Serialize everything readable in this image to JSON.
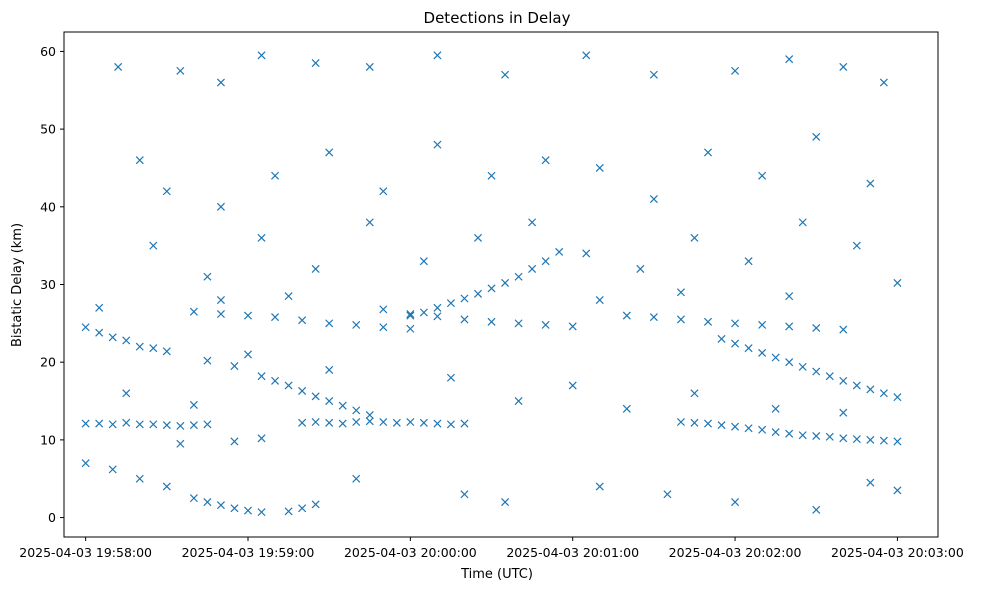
{
  "chart_data": {
    "type": "scatter",
    "title": "Detections in Delay",
    "xlabel": "Time (UTC)",
    "ylabel": "Bistatic Delay (km)",
    "x_type": "time",
    "xlim": [
      "2025-04-03 19:57:52",
      "2025-04-03 20:03:15"
    ],
    "ylim": [
      -2.5,
      62.5
    ],
    "x_ticks": [
      "2025-04-03 19:58:00",
      "2025-04-03 19:59:00",
      "2025-04-03 20:00:00",
      "2025-04-03 20:01:00",
      "2025-04-03 20:02:00",
      "2025-04-03 20:03:00"
    ],
    "y_ticks": [
      0,
      10,
      20,
      30,
      40,
      50,
      60
    ],
    "grid": false,
    "marker": "x",
    "color": "#1f77b4",
    "series": [
      {
        "points": [
          [
            "2025-04-03 19:58:00",
            12.1
          ],
          [
            "2025-04-03 19:58:05",
            12.1
          ],
          [
            "2025-04-03 19:58:10",
            12.0
          ],
          [
            "2025-04-03 19:58:15",
            12.2
          ],
          [
            "2025-04-03 19:58:20",
            12.0
          ],
          [
            "2025-04-03 19:58:25",
            12.0
          ],
          [
            "2025-04-03 19:58:30",
            11.9
          ],
          [
            "2025-04-03 19:58:35",
            11.8
          ],
          [
            "2025-04-03 19:58:40",
            11.9
          ],
          [
            "2025-04-03 19:58:45",
            12.0
          ],
          [
            "2025-04-03 19:59:20",
            12.2
          ],
          [
            "2025-04-03 19:59:25",
            12.3
          ],
          [
            "2025-04-03 19:59:30",
            12.2
          ],
          [
            "2025-04-03 19:59:35",
            12.1
          ],
          [
            "2025-04-03 19:59:40",
            12.3
          ],
          [
            "2025-04-03 19:59:45",
            12.4
          ],
          [
            "2025-04-03 19:59:50",
            12.3
          ],
          [
            "2025-04-03 19:59:55",
            12.2
          ],
          [
            "2025-04-03 20:00:00",
            12.3
          ],
          [
            "2025-04-03 20:00:05",
            12.2
          ],
          [
            "2025-04-03 20:00:10",
            12.1
          ],
          [
            "2025-04-03 20:00:15",
            12.0
          ],
          [
            "2025-04-03 20:00:20",
            12.1
          ],
          [
            "2025-04-03 20:01:40",
            12.3
          ],
          [
            "2025-04-03 20:01:45",
            12.2
          ],
          [
            "2025-04-03 20:01:50",
            12.1
          ],
          [
            "2025-04-03 20:01:55",
            11.9
          ],
          [
            "2025-04-03 20:02:00",
            11.7
          ],
          [
            "2025-04-03 20:02:05",
            11.5
          ],
          [
            "2025-04-03 20:02:10",
            11.3
          ],
          [
            "2025-04-03 20:02:15",
            11.0
          ],
          [
            "2025-04-03 20:02:20",
            10.8
          ],
          [
            "2025-04-03 20:02:25",
            10.6
          ],
          [
            "2025-04-03 20:02:30",
            10.5
          ],
          [
            "2025-04-03 20:02:35",
            10.4
          ],
          [
            "2025-04-03 20:02:40",
            10.2
          ],
          [
            "2025-04-03 20:02:45",
            10.1
          ],
          [
            "2025-04-03 20:02:50",
            10.0
          ],
          [
            "2025-04-03 20:02:55",
            9.9
          ],
          [
            "2025-04-03 20:03:00",
            9.8
          ],
          [
            "2025-04-03 19:58:00",
            24.5
          ],
          [
            "2025-04-03 19:58:05",
            23.8
          ],
          [
            "2025-04-03 19:58:10",
            23.2
          ],
          [
            "2025-04-03 19:58:15",
            22.8
          ],
          [
            "2025-04-03 19:58:20",
            22.0
          ],
          [
            "2025-04-03 19:58:25",
            21.8
          ],
          [
            "2025-04-03 19:58:30",
            21.4
          ],
          [
            "2025-04-03 19:58:45",
            20.2
          ],
          [
            "2025-04-03 19:58:55",
            19.5
          ],
          [
            "2025-04-03 19:59:05",
            18.2
          ],
          [
            "2025-04-03 19:59:10",
            17.6
          ],
          [
            "2025-04-03 19:59:15",
            17.0
          ],
          [
            "2025-04-03 19:59:20",
            16.3
          ],
          [
            "2025-04-03 19:59:25",
            15.6
          ],
          [
            "2025-04-03 19:59:30",
            15.0
          ],
          [
            "2025-04-03 19:59:35",
            14.4
          ],
          [
            "2025-04-03 19:59:40",
            13.8
          ],
          [
            "2025-04-03 19:59:45",
            13.2
          ],
          [
            "2025-04-03 19:58:40",
            26.5
          ],
          [
            "2025-04-03 19:58:50",
            26.2
          ],
          [
            "2025-04-03 19:59:00",
            26.0
          ],
          [
            "2025-04-03 19:59:10",
            25.8
          ],
          [
            "2025-04-03 19:59:20",
            25.4
          ],
          [
            "2025-04-03 19:59:30",
            25.0
          ],
          [
            "2025-04-03 19:59:40",
            24.8
          ],
          [
            "2025-04-03 19:59:50",
            24.5
          ],
          [
            "2025-04-03 20:00:00",
            24.3
          ],
          [
            "2025-04-03 19:59:50",
            26.8
          ],
          [
            "2025-04-03 20:00:00",
            26.2
          ],
          [
            "2025-04-03 20:00:10",
            25.9
          ],
          [
            "2025-04-03 20:00:20",
            25.5
          ],
          [
            "2025-04-03 20:00:30",
            25.2
          ],
          [
            "2025-04-03 20:00:40",
            25.0
          ],
          [
            "2025-04-03 20:00:50",
            24.8
          ],
          [
            "2025-04-03 20:01:00",
            24.6
          ],
          [
            "2025-04-03 20:00:00",
            26.0
          ],
          [
            "2025-04-03 20:00:05",
            26.4
          ],
          [
            "2025-04-03 20:00:10",
            27.0
          ],
          [
            "2025-04-03 20:00:15",
            27.6
          ],
          [
            "2025-04-03 20:00:20",
            28.2
          ],
          [
            "2025-04-03 20:00:25",
            28.8
          ],
          [
            "2025-04-03 20:00:30",
            29.5
          ],
          [
            "2025-04-03 20:00:35",
            30.2
          ],
          [
            "2025-04-03 20:00:40",
            31.0
          ],
          [
            "2025-04-03 20:00:45",
            32.0
          ],
          [
            "2025-04-03 20:00:50",
            33.0
          ],
          [
            "2025-04-03 20:00:55",
            34.2
          ],
          [
            "2025-04-03 20:01:20",
            26.0
          ],
          [
            "2025-04-03 20:01:30",
            25.8
          ],
          [
            "2025-04-03 20:01:40",
            25.5
          ],
          [
            "2025-04-03 20:01:50",
            25.2
          ],
          [
            "2025-04-03 20:02:00",
            25.0
          ],
          [
            "2025-04-03 20:02:10",
            24.8
          ],
          [
            "2025-04-03 20:02:20",
            24.6
          ],
          [
            "2025-04-03 20:02:30",
            24.4
          ],
          [
            "2025-04-03 20:02:40",
            24.2
          ],
          [
            "2025-04-03 20:01:55",
            23.0
          ],
          [
            "2025-04-03 20:02:00",
            22.4
          ],
          [
            "2025-04-03 20:02:05",
            21.8
          ],
          [
            "2025-04-03 20:02:10",
            21.2
          ],
          [
            "2025-04-03 20:02:15",
            20.6
          ],
          [
            "2025-04-03 20:02:20",
            20.0
          ],
          [
            "2025-04-03 20:02:25",
            19.4
          ],
          [
            "2025-04-03 20:02:30",
            18.8
          ],
          [
            "2025-04-03 20:02:35",
            18.2
          ],
          [
            "2025-04-03 20:02:40",
            17.6
          ],
          [
            "2025-04-03 20:02:45",
            17.0
          ],
          [
            "2025-04-03 20:02:50",
            16.5
          ],
          [
            "2025-04-03 20:02:55",
            16.0
          ],
          [
            "2025-04-03 20:03:00",
            15.5
          ],
          [
            "2025-04-03 19:58:40",
            2.5
          ],
          [
            "2025-04-03 19:58:45",
            2.0
          ],
          [
            "2025-04-03 19:58:50",
            1.6
          ],
          [
            "2025-04-03 19:58:55",
            1.2
          ],
          [
            "2025-04-03 19:59:00",
            0.9
          ],
          [
            "2025-04-03 19:59:05",
            0.7
          ],
          [
            "2025-04-03 19:59:15",
            0.8
          ],
          [
            "2025-04-03 19:59:20",
            1.2
          ],
          [
            "2025-04-03 19:59:25",
            1.7
          ],
          [
            "2025-04-03 19:58:00",
            7.0
          ],
          [
            "2025-04-03 19:58:10",
            6.2
          ],
          [
            "2025-04-03 19:58:20",
            5.0
          ],
          [
            "2025-04-03 19:58:35",
            9.5
          ],
          [
            "2025-04-03 19:58:55",
            9.8
          ],
          [
            "2025-04-03 19:59:05",
            10.2
          ],
          [
            "2025-04-03 19:58:12",
            58.0
          ],
          [
            "2025-04-03 19:58:35",
            57.5
          ],
          [
            "2025-04-03 19:58:50",
            56.0
          ],
          [
            "2025-04-03 19:59:05",
            59.5
          ],
          [
            "2025-04-03 19:59:25",
            58.5
          ],
          [
            "2025-04-03 19:59:45",
            58.0
          ],
          [
            "2025-04-03 20:00:10",
            59.5
          ],
          [
            "2025-04-03 20:00:35",
            57.0
          ],
          [
            "2025-04-03 20:01:05",
            59.5
          ],
          [
            "2025-04-03 20:01:30",
            57.0
          ],
          [
            "2025-04-03 20:02:00",
            57.5
          ],
          [
            "2025-04-03 20:02:20",
            59.0
          ],
          [
            "2025-04-03 20:02:40",
            58.0
          ],
          [
            "2025-04-03 20:02:55",
            56.0
          ],
          [
            "2025-04-03 19:58:20",
            46.0
          ],
          [
            "2025-04-03 19:58:30",
            42.0
          ],
          [
            "2025-04-03 19:58:50",
            40.0
          ],
          [
            "2025-04-03 19:59:10",
            44.0
          ],
          [
            "2025-04-03 19:59:30",
            47.0
          ],
          [
            "2025-04-03 19:59:50",
            42.0
          ],
          [
            "2025-04-03 20:00:10",
            48.0
          ],
          [
            "2025-04-03 20:00:30",
            44.0
          ],
          [
            "2025-04-03 20:00:50",
            46.0
          ],
          [
            "2025-04-03 20:01:10",
            45.0
          ],
          [
            "2025-04-03 20:01:30",
            41.0
          ],
          [
            "2025-04-03 20:01:50",
            47.0
          ],
          [
            "2025-04-03 20:02:10",
            44.0
          ],
          [
            "2025-04-03 20:02:30",
            49.0
          ],
          [
            "2025-04-03 20:02:50",
            43.0
          ],
          [
            "2025-04-03 19:58:25",
            35.0
          ],
          [
            "2025-04-03 19:58:45",
            31.0
          ],
          [
            "2025-04-03 19:59:05",
            36.0
          ],
          [
            "2025-04-03 19:59:25",
            32.0
          ],
          [
            "2025-04-03 19:59:45",
            38.0
          ],
          [
            "2025-04-03 20:00:05",
            33.0
          ],
          [
            "2025-04-03 20:00:25",
            36.0
          ],
          [
            "2025-04-03 20:00:45",
            38.0
          ],
          [
            "2025-04-03 20:01:05",
            34.0
          ],
          [
            "2025-04-03 20:01:25",
            32.0
          ],
          [
            "2025-04-03 20:01:45",
            36.0
          ],
          [
            "2025-04-03 20:02:05",
            33.0
          ],
          [
            "2025-04-03 20:02:25",
            38.0
          ],
          [
            "2025-04-03 20:02:45",
            35.0
          ],
          [
            "2025-04-03 19:58:15",
            16.0
          ],
          [
            "2025-04-03 19:58:40",
            14.5
          ],
          [
            "2025-04-03 19:59:00",
            21.0
          ],
          [
            "2025-04-03 19:59:30",
            19.0
          ],
          [
            "2025-04-03 20:00:15",
            18.0
          ],
          [
            "2025-04-03 20:00:40",
            15.0
          ],
          [
            "2025-04-03 20:01:00",
            17.0
          ],
          [
            "2025-04-03 20:01:20",
            14.0
          ],
          [
            "2025-04-03 20:01:45",
            16.0
          ],
          [
            "2025-04-03 20:02:15",
            14.0
          ],
          [
            "2025-04-03 20:02:40",
            13.5
          ],
          [
            "2025-04-03 19:58:30",
            4.0
          ],
          [
            "2025-04-03 19:59:40",
            5.0
          ],
          [
            "2025-04-03 20:00:20",
            3.0
          ],
          [
            "2025-04-03 20:00:35",
            2.0
          ],
          [
            "2025-04-03 20:01:10",
            4.0
          ],
          [
            "2025-04-03 20:01:35",
            3.0
          ],
          [
            "2025-04-03 20:02:00",
            2.0
          ],
          [
            "2025-04-03 20:02:30",
            1.0
          ],
          [
            "2025-04-03 20:02:50",
            4.5
          ],
          [
            "2025-04-03 20:03:00",
            3.5
          ],
          [
            "2025-04-03 19:58:05",
            27.0
          ],
          [
            "2025-04-03 19:58:50",
            28.0
          ],
          [
            "2025-04-03 19:59:15",
            28.5
          ],
          [
            "2025-04-03 20:01:10",
            28.0
          ],
          [
            "2025-04-03 20:01:40",
            29.0
          ],
          [
            "2025-04-03 20:02:20",
            28.5
          ],
          [
            "2025-04-03 20:03:00",
            30.2
          ]
        ]
      }
    ]
  }
}
